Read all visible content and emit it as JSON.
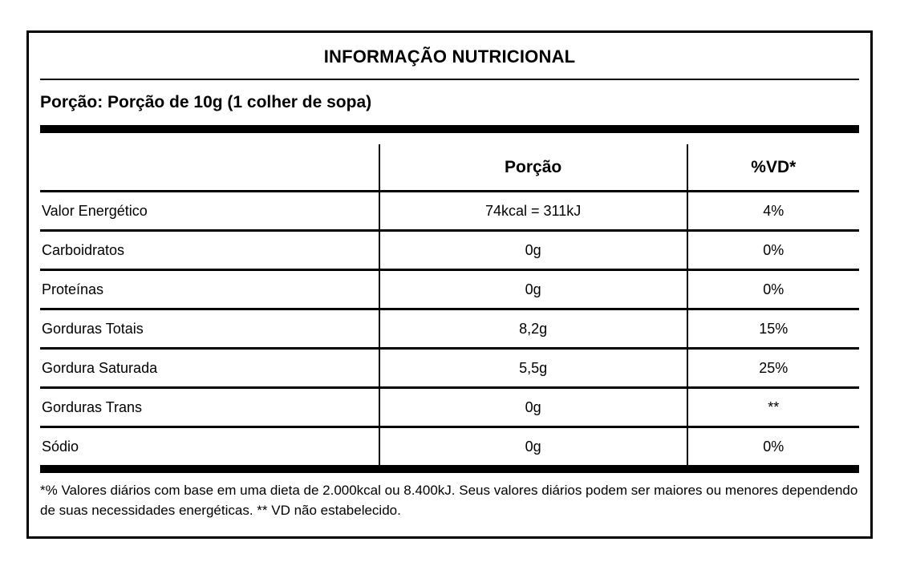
{
  "label": {
    "title": "INFORMAÇÃO NUTRICIONAL",
    "serving_line": "Porção: Porção de 10g (1 colher de sopa)",
    "columns": {
      "nutrient": "",
      "portion": "Porção",
      "vd": "%VD*"
    },
    "rows": [
      {
        "label": "Valor Energético",
        "portion": "74kcal = 311kJ",
        "vd": "4%"
      },
      {
        "label": "Carboidratos",
        "portion": "0g",
        "vd": "0%"
      },
      {
        "label": "Proteínas",
        "portion": "0g",
        "vd": "0%"
      },
      {
        "label": "Gorduras Totais",
        "portion": "8,2g",
        "vd": "15%"
      },
      {
        "label": "Gordura Saturada",
        "portion": "5,5g",
        "vd": "25%"
      },
      {
        "label": "Gorduras Trans",
        "portion": "0g",
        "vd": "**"
      },
      {
        "label": "Sódio",
        "portion": "0g",
        "vd": "0%"
      }
    ],
    "footnote": "*% Valores diários com base em uma dieta de 2.000kcal ou 8.400kJ. Seus valores diários podem ser maiores ou menores dependendo de suas necessidades energéticas. ** VD não estabelecido.",
    "colors": {
      "text": "#000000",
      "border": "#000000",
      "background": "#ffffff"
    }
  }
}
